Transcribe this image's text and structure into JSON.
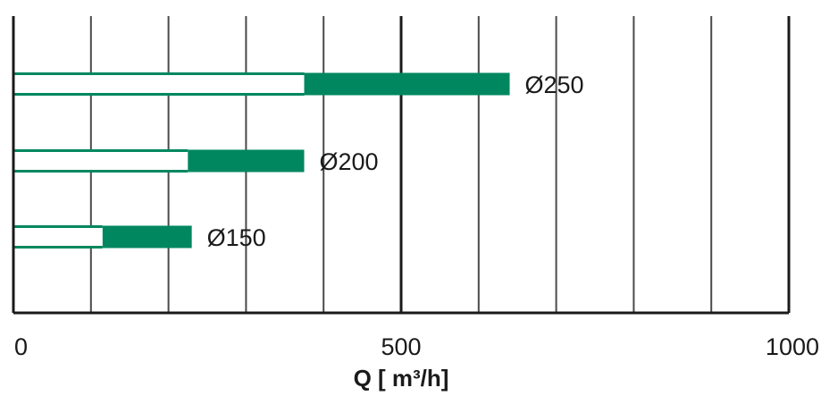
{
  "chart_data": {
    "type": "bar",
    "orientation": "horizontal",
    "xlabel": "Q [ m³/h]",
    "xlim": [
      0,
      1000
    ],
    "x_ticks": [
      {
        "value": 0,
        "label": "0"
      },
      {
        "value": 500,
        "label": "500"
      },
      {
        "value": 1000,
        "label": "1000"
      }
    ],
    "gridlines": [
      100,
      200,
      300,
      400,
      500,
      600,
      700,
      800,
      900,
      1000
    ],
    "grid": true,
    "bars": [
      {
        "label": "Ø250",
        "range_start": 0,
        "filled_start": 375,
        "filled_end": 640
      },
      {
        "label": "Ø200",
        "range_start": 0,
        "filled_start": 225,
        "filled_end": 375
      },
      {
        "label": "Ø150",
        "range_start": 0,
        "filled_start": 115,
        "filled_end": 230
      }
    ],
    "colors": {
      "bar": "#00875f",
      "axis": "#1a1a1a",
      "grid": "#4a4a4a"
    }
  }
}
